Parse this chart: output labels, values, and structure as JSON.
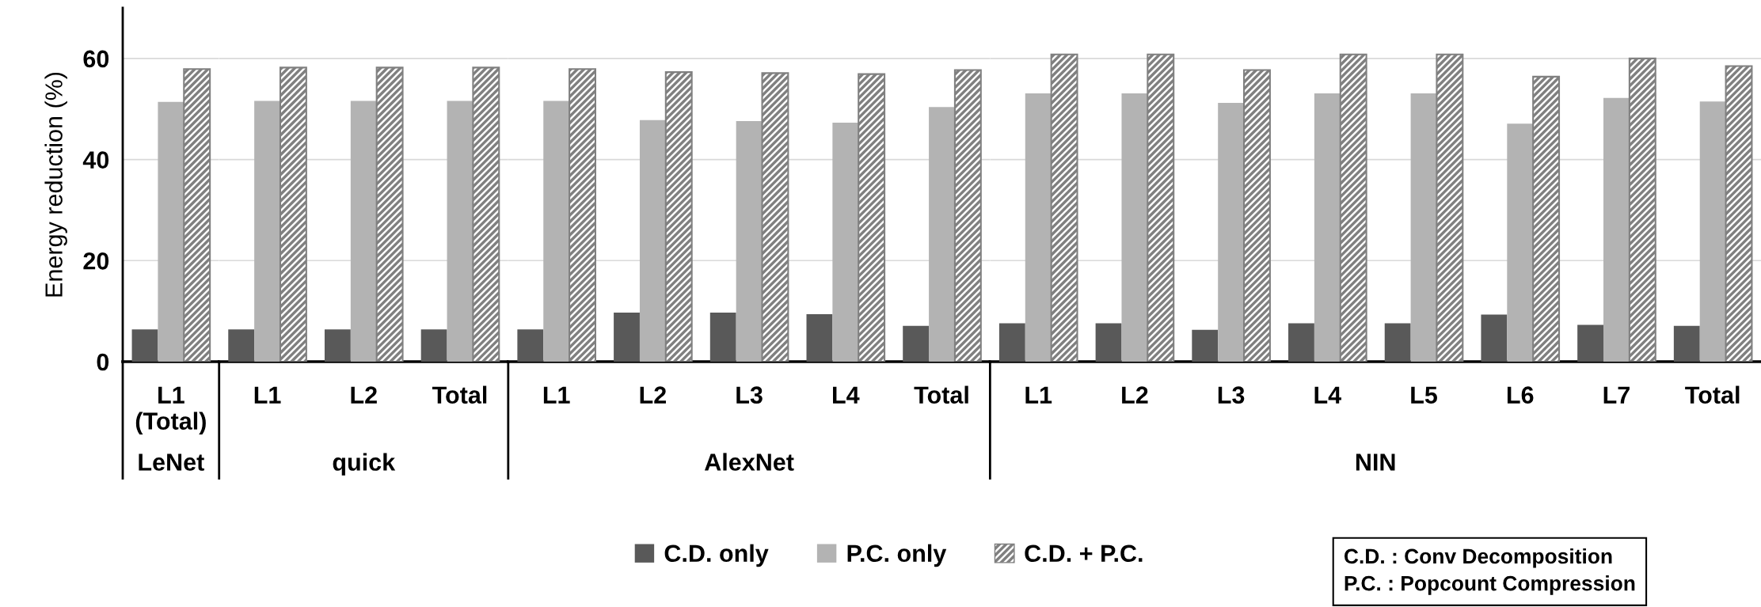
{
  "chart_data": [
    {
      "type": "bar",
      "ylabel": "Energy reduction (%)",
      "xlabel": "LeNet",
      "categories": [
        "L1\n(Total)"
      ],
      "series": [
        {
          "name": "C.D. only",
          "color": "#595959",
          "values": [
            6.4
          ]
        },
        {
          "name": "P.C. only",
          "color": "#b3b3b3",
          "values": [
            51.4
          ]
        },
        {
          "name": "C.D. + P.C.",
          "color": "#808080",
          "values": [
            57.9
          ]
        }
      ],
      "ylim": [
        0,
        70
      ],
      "yticks": [
        0,
        20,
        40,
        60
      ],
      "grid": "y",
      "legend": "bottom"
    },
    {
      "type": "bar",
      "xlabel": "quick",
      "categories": [
        "L1",
        "L2",
        "Total"
      ],
      "series": [
        {
          "color": "#595959",
          "values": [
            6.4,
            6.4,
            6.4
          ]
        },
        {
          "color": "#b3b3b3",
          "values": [
            51.6,
            51.6,
            51.6
          ]
        },
        {
          "color": "#808080",
          "values": [
            58.2,
            58.2,
            58.2
          ]
        }
      ],
      "ylim": [
        0,
        70
      ],
      "yticks": [
        0,
        20,
        40,
        60
      ],
      "grid": "y",
      "tick_labels": "x"
    },
    {
      "type": "bar",
      "xlabel": "AlexNet",
      "categories": [
        "L1",
        "L2",
        "L3",
        "L4",
        "Total"
      ],
      "series": [
        {
          "color": "#595959",
          "values": [
            6.4,
            9.7,
            9.7,
            9.4,
            7.1
          ]
        },
        {
          "color": "#b3b3b3",
          "values": [
            51.6,
            47.8,
            47.6,
            47.3,
            50.4
          ]
        },
        {
          "color": "#808080",
          "values": [
            57.9,
            57.3,
            57.1,
            56.9,
            57.7
          ]
        }
      ],
      "ylim": [
        0,
        70
      ],
      "yticks": [
        0,
        20,
        40,
        60
      ],
      "grid": "y",
      "tick_labels": "x"
    },
    {
      "type": "bar",
      "xlabel": "NIN",
      "categories": [
        "L1",
        "L2",
        "L3",
        "L4",
        "L5",
        "L6",
        "L7",
        "Total"
      ],
      "series": [
        {
          "color": "#595959",
          "values": [
            7.6,
            7.6,
            6.3,
            7.6,
            7.6,
            9.3,
            7.3,
            7.1
          ]
        },
        {
          "color": "#b3b3b3",
          "values": [
            53.1,
            53.1,
            51.2,
            53.1,
            53.1,
            47.1,
            52.2,
            51.5
          ]
        },
        {
          "color": "#808080",
          "values": [
            60.8,
            60.8,
            57.7,
            60.8,
            60.8,
            56.4,
            60.0,
            58.5
          ]
        }
      ],
      "ylim": [
        0,
        70
      ],
      "yticks": [
        0,
        20,
        40,
        60
      ],
      "grid": "y",
      "tick_labels": "x",
      "annotations": [
        "C.D. : Conv Decomposition\nP.C. : Popcount Compression"
      ]
    }
  ]
}
